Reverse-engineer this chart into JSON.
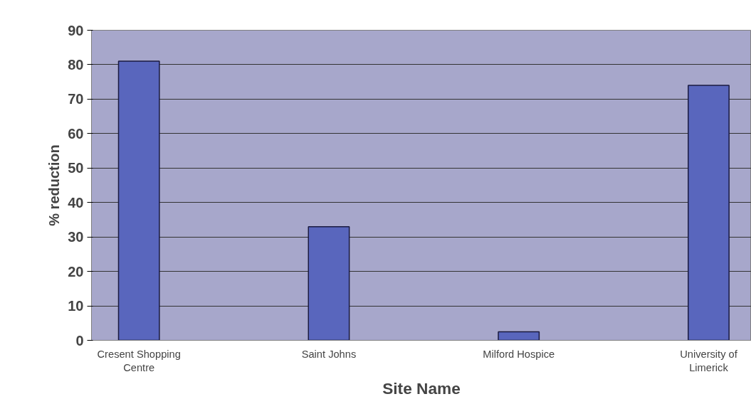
{
  "chart_data": {
    "type": "bar",
    "xlabel": "Site Name",
    "ylabel": "% reduction",
    "categories": [
      "Cresent Shopping Centre",
      "Saint Johns",
      "Milford Hospice",
      "University of Limerick"
    ],
    "values": [
      81,
      33,
      2.5,
      74
    ],
    "color": "#5966bd",
    "ylim": [
      0,
      90
    ],
    "yticks": [
      0,
      10,
      20,
      30,
      40,
      50,
      60,
      70,
      80,
      90
    ],
    "grid": "y"
  }
}
